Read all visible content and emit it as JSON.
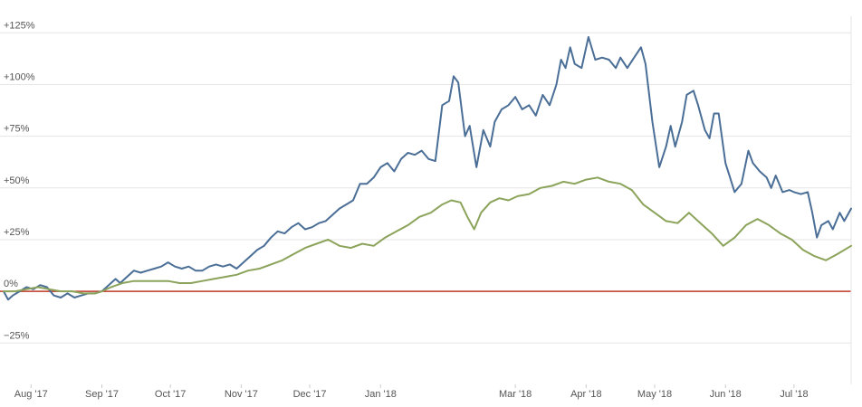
{
  "chart_data": {
    "type": "line",
    "title": "",
    "xlabel": "",
    "ylabel": "",
    "ylim": [
      -45,
      133
    ],
    "y_ticks": [
      {
        "value": 125,
        "label": "+125%"
      },
      {
        "value": 100,
        "label": "+100%"
      },
      {
        "value": 75,
        "label": "+75%"
      },
      {
        "value": 50,
        "label": "+50%"
      },
      {
        "value": 25,
        "label": "+25%"
      },
      {
        "value": 0,
        "label": "0%"
      },
      {
        "value": -25,
        "label": "−25%"
      }
    ],
    "x_ticks": [
      {
        "date": "2017-08-01",
        "label": "Aug '17"
      },
      {
        "date": "2017-09-01",
        "label": "Sep '17"
      },
      {
        "date": "2017-10-01",
        "label": "Oct '17"
      },
      {
        "date": "2017-11-01",
        "label": "Nov '17"
      },
      {
        "date": "2017-12-01",
        "label": "Dec '17"
      },
      {
        "date": "2018-01-01",
        "label": "Jan '18"
      },
      {
        "date": "2018-03-01",
        "label": "Mar '18"
      },
      {
        "date": "2018-04-01",
        "label": "Apr '18"
      },
      {
        "date": "2018-05-01",
        "label": "May '18"
      },
      {
        "date": "2018-06-01",
        "label": "Jun '18"
      },
      {
        "date": "2018-07-01",
        "label": "Jul '18"
      }
    ],
    "xlim": [
      "2017-07-20",
      "2018-07-26"
    ],
    "grid": true,
    "zero_line_color": "#c0392b",
    "series": [
      {
        "color": "#4a6e96",
        "points": [
          [
            "2017-07-20",
            0
          ],
          [
            "2017-07-22",
            -4
          ],
          [
            "2017-07-24",
            -2
          ],
          [
            "2017-07-27",
            0
          ],
          [
            "2017-07-30",
            2
          ],
          [
            "2017-08-02",
            1
          ],
          [
            "2017-08-05",
            3
          ],
          [
            "2017-08-08",
            2
          ],
          [
            "2017-08-11",
            -2
          ],
          [
            "2017-08-14",
            -3
          ],
          [
            "2017-08-17",
            -1
          ],
          [
            "2017-08-20",
            -3
          ],
          [
            "2017-08-23",
            -2
          ],
          [
            "2017-08-26",
            -1
          ],
          [
            "2017-08-29",
            -1
          ],
          [
            "2017-09-01",
            0
          ],
          [
            "2017-09-04",
            3
          ],
          [
            "2017-09-07",
            6
          ],
          [
            "2017-09-09",
            4
          ],
          [
            "2017-09-12",
            7
          ],
          [
            "2017-09-15",
            10
          ],
          [
            "2017-09-18",
            9
          ],
          [
            "2017-09-21",
            10
          ],
          [
            "2017-09-24",
            11
          ],
          [
            "2017-09-27",
            12
          ],
          [
            "2017-09-30",
            14
          ],
          [
            "2017-10-03",
            12
          ],
          [
            "2017-10-06",
            11
          ],
          [
            "2017-10-09",
            12
          ],
          [
            "2017-10-12",
            10
          ],
          [
            "2017-10-15",
            10
          ],
          [
            "2017-10-18",
            12
          ],
          [
            "2017-10-21",
            13
          ],
          [
            "2017-10-24",
            12
          ],
          [
            "2017-10-27",
            13
          ],
          [
            "2017-10-30",
            11
          ],
          [
            "2017-11-02",
            14
          ],
          [
            "2017-11-05",
            17
          ],
          [
            "2017-11-08",
            20
          ],
          [
            "2017-11-11",
            22
          ],
          [
            "2017-11-14",
            26
          ],
          [
            "2017-11-17",
            29
          ],
          [
            "2017-11-20",
            28
          ],
          [
            "2017-11-23",
            31
          ],
          [
            "2017-11-26",
            33
          ],
          [
            "2017-11-29",
            30
          ],
          [
            "2017-12-02",
            31
          ],
          [
            "2017-12-05",
            33
          ],
          [
            "2017-12-08",
            34
          ],
          [
            "2017-12-11",
            37
          ],
          [
            "2017-12-14",
            40
          ],
          [
            "2017-12-17",
            42
          ],
          [
            "2017-12-20",
            44
          ],
          [
            "2017-12-23",
            52
          ],
          [
            "2017-12-26",
            52
          ],
          [
            "2017-12-29",
            55
          ],
          [
            "2018-01-01",
            60
          ],
          [
            "2018-01-04",
            62
          ],
          [
            "2018-01-07",
            58
          ],
          [
            "2018-01-10",
            64
          ],
          [
            "2018-01-13",
            67
          ],
          [
            "2018-01-16",
            66
          ],
          [
            "2018-01-19",
            68
          ],
          [
            "2018-01-22",
            64
          ],
          [
            "2018-01-25",
            63
          ],
          [
            "2018-01-28",
            90
          ],
          [
            "2018-01-31",
            92
          ],
          [
            "2018-02-02",
            104
          ],
          [
            "2018-02-04",
            101
          ],
          [
            "2018-02-07",
            75
          ],
          [
            "2018-02-09",
            80
          ],
          [
            "2018-02-12",
            60
          ],
          [
            "2018-02-15",
            78
          ],
          [
            "2018-02-18",
            70
          ],
          [
            "2018-02-20",
            82
          ],
          [
            "2018-02-23",
            88
          ],
          [
            "2018-02-26",
            90
          ],
          [
            "2018-03-01",
            94
          ],
          [
            "2018-03-04",
            88
          ],
          [
            "2018-03-07",
            90
          ],
          [
            "2018-03-10",
            85
          ],
          [
            "2018-03-13",
            95
          ],
          [
            "2018-03-16",
            90
          ],
          [
            "2018-03-19",
            100
          ],
          [
            "2018-03-21",
            112
          ],
          [
            "2018-03-23",
            108
          ],
          [
            "2018-03-25",
            118
          ],
          [
            "2018-03-27",
            110
          ],
          [
            "2018-03-30",
            108
          ],
          [
            "2018-04-02",
            123
          ],
          [
            "2018-04-05",
            112
          ],
          [
            "2018-04-08",
            113
          ],
          [
            "2018-04-11",
            112
          ],
          [
            "2018-04-14",
            108
          ],
          [
            "2018-04-16",
            113
          ],
          [
            "2018-04-19",
            108
          ],
          [
            "2018-04-22",
            113
          ],
          [
            "2018-04-25",
            118
          ],
          [
            "2018-04-27",
            110
          ],
          [
            "2018-04-30",
            82
          ],
          [
            "2018-05-03",
            60
          ],
          [
            "2018-05-06",
            70
          ],
          [
            "2018-05-08",
            80
          ],
          [
            "2018-05-10",
            70
          ],
          [
            "2018-05-13",
            82
          ],
          [
            "2018-05-15",
            95
          ],
          [
            "2018-05-18",
            97
          ],
          [
            "2018-05-20",
            90
          ],
          [
            "2018-05-23",
            78
          ],
          [
            "2018-05-25",
            74
          ],
          [
            "2018-05-27",
            86
          ],
          [
            "2018-05-29",
            86
          ],
          [
            "2018-06-01",
            62
          ],
          [
            "2018-06-03",
            55
          ],
          [
            "2018-06-05",
            48
          ],
          [
            "2018-06-08",
            52
          ],
          [
            "2018-06-11",
            68
          ],
          [
            "2018-06-13",
            62
          ],
          [
            "2018-06-16",
            58
          ],
          [
            "2018-06-19",
            55
          ],
          [
            "2018-06-21",
            50
          ],
          [
            "2018-06-23",
            56
          ],
          [
            "2018-06-26",
            48
          ],
          [
            "2018-06-29",
            49
          ],
          [
            "2018-07-01",
            48
          ],
          [
            "2018-07-04",
            47
          ],
          [
            "2018-07-07",
            48
          ],
          [
            "2018-07-09",
            38
          ],
          [
            "2018-07-11",
            26
          ],
          [
            "2018-07-13",
            32
          ],
          [
            "2018-07-16",
            34
          ],
          [
            "2018-07-18",
            30
          ],
          [
            "2018-07-21",
            38
          ],
          [
            "2018-07-23",
            34
          ],
          [
            "2018-07-26",
            40
          ]
        ]
      },
      {
        "color": "#8ba35a",
        "points": [
          [
            "2017-07-20",
            0
          ],
          [
            "2017-07-25",
            0
          ],
          [
            "2017-07-30",
            1
          ],
          [
            "2017-08-04",
            2
          ],
          [
            "2017-08-09",
            1
          ],
          [
            "2017-08-14",
            0
          ],
          [
            "2017-08-19",
            0
          ],
          [
            "2017-08-24",
            -1
          ],
          [
            "2017-08-29",
            -1
          ],
          [
            "2017-09-01",
            0
          ],
          [
            "2017-09-05",
            2
          ],
          [
            "2017-09-10",
            4
          ],
          [
            "2017-09-15",
            5
          ],
          [
            "2017-09-20",
            5
          ],
          [
            "2017-09-25",
            5
          ],
          [
            "2017-09-30",
            5
          ],
          [
            "2017-10-05",
            4
          ],
          [
            "2017-10-10",
            4
          ],
          [
            "2017-10-15",
            5
          ],
          [
            "2017-10-20",
            6
          ],
          [
            "2017-10-25",
            7
          ],
          [
            "2017-10-30",
            8
          ],
          [
            "2017-11-04",
            10
          ],
          [
            "2017-11-09",
            11
          ],
          [
            "2017-11-14",
            13
          ],
          [
            "2017-11-19",
            15
          ],
          [
            "2017-11-24",
            18
          ],
          [
            "2017-11-29",
            21
          ],
          [
            "2017-12-04",
            23
          ],
          [
            "2017-12-09",
            25
          ],
          [
            "2017-12-14",
            22
          ],
          [
            "2017-12-19",
            21
          ],
          [
            "2017-12-24",
            23
          ],
          [
            "2017-12-29",
            22
          ],
          [
            "2018-01-03",
            26
          ],
          [
            "2018-01-08",
            29
          ],
          [
            "2018-01-13",
            32
          ],
          [
            "2018-01-18",
            36
          ],
          [
            "2018-01-23",
            38
          ],
          [
            "2018-01-28",
            42
          ],
          [
            "2018-02-01",
            44
          ],
          [
            "2018-02-05",
            43
          ],
          [
            "2018-02-08",
            36
          ],
          [
            "2018-02-11",
            30
          ],
          [
            "2018-02-14",
            38
          ],
          [
            "2018-02-18",
            43
          ],
          [
            "2018-02-22",
            45
          ],
          [
            "2018-02-26",
            44
          ],
          [
            "2018-03-02",
            46
          ],
          [
            "2018-03-07",
            47
          ],
          [
            "2018-03-12",
            50
          ],
          [
            "2018-03-17",
            51
          ],
          [
            "2018-03-22",
            53
          ],
          [
            "2018-03-27",
            52
          ],
          [
            "2018-04-01",
            54
          ],
          [
            "2018-04-06",
            55
          ],
          [
            "2018-04-11",
            53
          ],
          [
            "2018-04-16",
            52
          ],
          [
            "2018-04-21",
            49
          ],
          [
            "2018-04-26",
            42
          ],
          [
            "2018-05-01",
            38
          ],
          [
            "2018-05-06",
            34
          ],
          [
            "2018-05-11",
            33
          ],
          [
            "2018-05-16",
            38
          ],
          [
            "2018-05-21",
            33
          ],
          [
            "2018-05-26",
            28
          ],
          [
            "2018-05-31",
            22
          ],
          [
            "2018-06-05",
            26
          ],
          [
            "2018-06-10",
            32
          ],
          [
            "2018-06-15",
            35
          ],
          [
            "2018-06-20",
            32
          ],
          [
            "2018-06-25",
            28
          ],
          [
            "2018-06-30",
            25
          ],
          [
            "2018-07-05",
            20
          ],
          [
            "2018-07-10",
            17
          ],
          [
            "2018-07-15",
            15
          ],
          [
            "2018-07-20",
            18
          ],
          [
            "2018-07-26",
            22
          ]
        ]
      }
    ]
  }
}
